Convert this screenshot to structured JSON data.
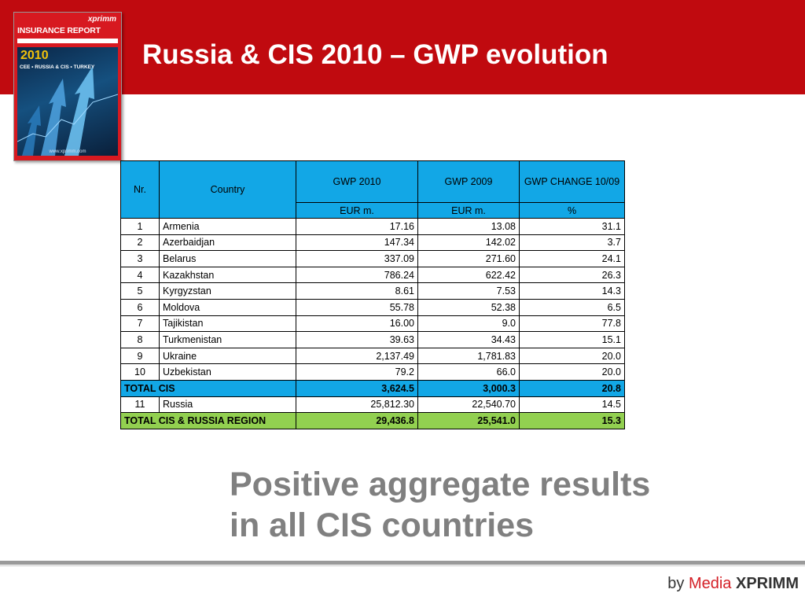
{
  "slide": {
    "title": "Russia & CIS 2010 – GWP evolution",
    "tagline_line1": "Positive aggregate results",
    "tagline_line2": "in all CIS countries"
  },
  "cover": {
    "brand": "xprimm",
    "title": "INSURANCE REPORT",
    "year": "2010",
    "subtitle": "CEE • RUSSIA & CIS • TURKEY",
    "url": "www.xprimm.com"
  },
  "table": {
    "headers": {
      "nr": "Nr.",
      "country": "Country",
      "gwp2010": "GWP 2010",
      "gwp2009": "GWP 2009",
      "change": "GWP CHANGE 10/09"
    },
    "units": {
      "gwp2010": "EUR m.",
      "gwp2009": "EUR m.",
      "change": "%"
    },
    "rows": [
      {
        "nr": "1",
        "country": "Armenia",
        "gwp2010": "17.16",
        "gwp2009": "13.08",
        "change": "31.1"
      },
      {
        "nr": "2",
        "country": "Azerbaidjan",
        "gwp2010": "147.34",
        "gwp2009": "142.02",
        "change": "3.7"
      },
      {
        "nr": "3",
        "country": "Belarus",
        "gwp2010": "337.09",
        "gwp2009": "271.60",
        "change": "24.1"
      },
      {
        "nr": "4",
        "country": "Kazakhstan",
        "gwp2010": "786.24",
        "gwp2009": "622.42",
        "change": "26.3"
      },
      {
        "nr": "5",
        "country": "Kyrgyzstan",
        "gwp2010": "8.61",
        "gwp2009": "7.53",
        "change": "14.3"
      },
      {
        "nr": "6",
        "country": "Moldova",
        "gwp2010": "55.78",
        "gwp2009": "52.38",
        "change": "6.5"
      },
      {
        "nr": "7",
        "country": "Tajikistan",
        "gwp2010": "16.00",
        "gwp2009": "9.0",
        "change": "77.8"
      },
      {
        "nr": "8",
        "country": "Turkmenistan",
        "gwp2010": "39.63",
        "gwp2009": "34.43",
        "change": "15.1"
      },
      {
        "nr": "9",
        "country": "Ukraine",
        "gwp2010": "2,137.49",
        "gwp2009": "1,781.83",
        "change": "20.0"
      },
      {
        "nr": "10",
        "country": "Uzbekistan",
        "gwp2010": "79.2",
        "gwp2009": "66.0",
        "change": "20.0"
      }
    ],
    "total_cis": {
      "label": "TOTAL CIS",
      "gwp2010": "3,624.5",
      "gwp2009": "3,000.3",
      "change": "20.8"
    },
    "russia": {
      "nr": "11",
      "country": "Russia",
      "gwp2010": "25,812.30",
      "gwp2009": "22,540.70",
      "change": "14.5"
    },
    "total_region": {
      "label": "TOTAL CIS & RUSSIA REGION",
      "gwp2010": "29,436.8",
      "gwp2009": "25,541.0",
      "change": "15.3"
    }
  },
  "footer": {
    "by": "by",
    "media": "Media",
    "brand": "XPRIMM"
  },
  "colors": {
    "header_red": "#c00a0f",
    "table_blue": "#12a7e6",
    "total_green": "#92d050",
    "tagline_gray": "#808080"
  }
}
